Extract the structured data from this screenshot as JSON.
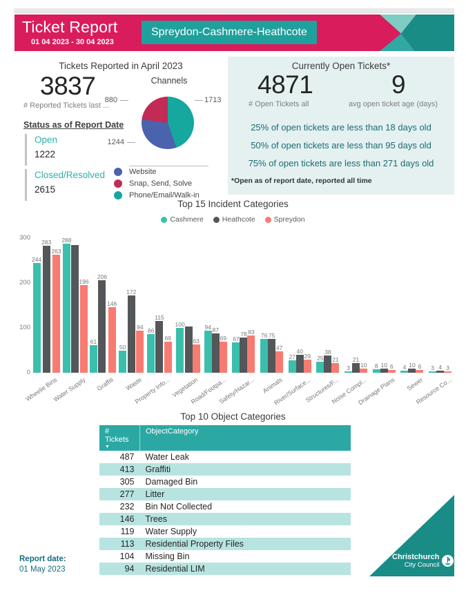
{
  "header": {
    "title": "Ticket Report",
    "date_range": "01 04 2023 - 30 04 2023",
    "area": "Spreydon-Cashmere-Heathcote"
  },
  "reported": {
    "title": "Tickets Reported in April 2023",
    "kpi_value": "3837",
    "kpi_label": "# Reported Tickets last ...",
    "status_heading": "Status as of Report Date",
    "open_label": "Open",
    "open_value": "1222",
    "closed_label": "Closed/Resolved",
    "closed_value": "2615"
  },
  "open_tickets": {
    "title": "Currently Open Tickets*",
    "kpi1_value": "4871",
    "kpi1_label": "# Open Tickets all",
    "kpi2_value": "9",
    "kpi2_label": "avg open ticket age (days)",
    "percentiles": [
      "25% of open tickets are less than 18 days old",
      "50% of open tickets are less than 95 days old",
      "75% of open tickets are less than 271 days old"
    ],
    "footnote": "*Open as of report date, reported all time"
  },
  "chart_data": [
    {
      "id": "incident_bar",
      "type": "bar",
      "title": "Top 15 Incident Categories",
      "categories": [
        "Wheelie Bins",
        "Water Supply",
        "Graffiti",
        "Waste",
        "Property Info...",
        "Vegetation",
        "Road/Footpa...",
        "Safety/Hazar...",
        "Animals",
        "River/Surface...",
        "Structures/F...",
        "Noise Compl...",
        "Drainage Plans",
        "Sewer",
        "Resource Co..."
      ],
      "series": [
        {
          "name": "Cashmere",
          "color": "#3BBFAD",
          "values": [
            244,
            288,
            61,
            50,
            86,
            100,
            94,
            67,
            76,
            27,
            25,
            3,
            8,
            4,
            3
          ]
        },
        {
          "name": "Heathcote",
          "color": "#53575A",
          "values": [
            283,
            285,
            206,
            172,
            115,
            103,
            87,
            78,
            75,
            40,
            38,
            21,
            10,
            10,
            4
          ],
          "hidden_value_labels": [
            1,
            5
          ]
        },
        {
          "name": "Spreydon",
          "color": "#F87B72",
          "values": [
            263,
            196,
            146,
            94,
            69,
            63,
            69,
            83,
            47,
            29,
            21,
            10,
            6,
            6,
            3
          ]
        }
      ],
      "ylim": [
        0,
        300
      ],
      "yticks": [
        0,
        100,
        200,
        300
      ],
      "grid": false,
      "legend_position": "top",
      "value_labels": true
    },
    {
      "id": "channels_pie",
      "type": "pie",
      "title": "Channels",
      "labels": [
        "Website",
        "Snap, Send, Solve",
        "Phone/Email/Walk-in"
      ],
      "values": [
        1244,
        880,
        1713
      ],
      "colors": [
        "#4B62AD",
        "#C22B55",
        "#16A79F"
      ],
      "draw_order_from_top_clockwise": [
        2,
        0,
        1
      ],
      "legend_position": "bottom"
    },
    {
      "id": "object_table",
      "type": "table",
      "title": "Top 10 Object Categories",
      "columns": [
        "# Tickets",
        "ObjectCategory"
      ],
      "sorted_by": "# Tickets descending",
      "rows": [
        [
          487,
          "Water Leak"
        ],
        [
          413,
          "Graffiti"
        ],
        [
          305,
          "Damaged Bin"
        ],
        [
          277,
          "Litter"
        ],
        [
          232,
          "Bin Not Collected"
        ],
        [
          146,
          "Trees"
        ],
        [
          119,
          "Water Supply"
        ],
        [
          113,
          "Residential Property Files"
        ],
        [
          104,
          "Missing Bin"
        ],
        [
          94,
          "Residential LIM"
        ]
      ]
    }
  ],
  "footer": {
    "report_date_label": "Report date:",
    "report_date": "01 May 2023",
    "logo_line1": "Christchurch",
    "logo_line2": "City Council"
  },
  "colors": {
    "banner_pink": "#D91C5C",
    "header_teal": "#1FA09C",
    "corner_teal": "#198C86",
    "panel_bg": "#E4F1F0",
    "accent_teal_text": "#2EB0A8",
    "dark_teal_text": "#1A6B74",
    "table_header": "#2BA8A3",
    "table_alt_row": "#B7E4E0"
  }
}
